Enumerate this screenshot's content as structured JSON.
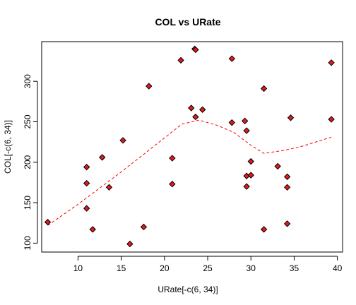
{
  "chart_data": {
    "type": "scatter",
    "title": "COL vs URate",
    "xlabel": "URate[-c(6, 34)]",
    "ylabel": "COL[-c(6, 34)]",
    "xlim": [
      5.8,
      40.6
    ],
    "ylim": [
      89,
      349
    ],
    "xticks": [
      10,
      15,
      20,
      25,
      30,
      35,
      40
    ],
    "yticks": [
      100,
      150,
      200,
      250,
      300
    ],
    "grid": false,
    "point_style": {
      "shape": "diamond",
      "fill": "#e31a1c",
      "stroke": "#000000"
    },
    "points": [
      {
        "x": 6.5,
        "y": 126
      },
      {
        "x": 11.0,
        "y": 194
      },
      {
        "x": 11.0,
        "y": 174
      },
      {
        "x": 11.0,
        "y": 143
      },
      {
        "x": 11.7,
        "y": 117
      },
      {
        "x": 12.8,
        "y": 206
      },
      {
        "x": 13.6,
        "y": 169
      },
      {
        "x": 15.2,
        "y": 227
      },
      {
        "x": 16.0,
        "y": 99
      },
      {
        "x": 17.6,
        "y": 120
      },
      {
        "x": 18.2,
        "y": 294
      },
      {
        "x": 20.9,
        "y": 205
      },
      {
        "x": 20.9,
        "y": 173
      },
      {
        "x": 21.9,
        "y": 326
      },
      {
        "x": 23.1,
        "y": 267
      },
      {
        "x": 23.5,
        "y": 340
      },
      {
        "x": 23.6,
        "y": 339
      },
      {
        "x": 23.6,
        "y": 256
      },
      {
        "x": 24.4,
        "y": 265
      },
      {
        "x": 27.8,
        "y": 328
      },
      {
        "x": 27.8,
        "y": 249
      },
      {
        "x": 29.3,
        "y": 251
      },
      {
        "x": 29.5,
        "y": 239
      },
      {
        "x": 29.5,
        "y": 183
      },
      {
        "x": 29.5,
        "y": 170
      },
      {
        "x": 30.0,
        "y": 201
      },
      {
        "x": 30.0,
        "y": 184
      },
      {
        "x": 31.5,
        "y": 291
      },
      {
        "x": 31.5,
        "y": 117
      },
      {
        "x": 33.1,
        "y": 195
      },
      {
        "x": 34.2,
        "y": 182
      },
      {
        "x": 34.2,
        "y": 169
      },
      {
        "x": 34.2,
        "y": 124
      },
      {
        "x": 34.6,
        "y": 255
      },
      {
        "x": 39.3,
        "y": 323
      },
      {
        "x": 39.3,
        "y": 253
      }
    ],
    "smooth_line": {
      "style": "dashed",
      "color": "#ff0000",
      "x": [
        6.5,
        10,
        15,
        20,
        22,
        24,
        26,
        28,
        30,
        31.5,
        34,
        36,
        39.3
      ],
      "y": [
        122,
        148,
        188,
        230,
        247,
        252,
        246,
        237,
        221,
        211,
        215,
        220,
        231
      ]
    }
  }
}
